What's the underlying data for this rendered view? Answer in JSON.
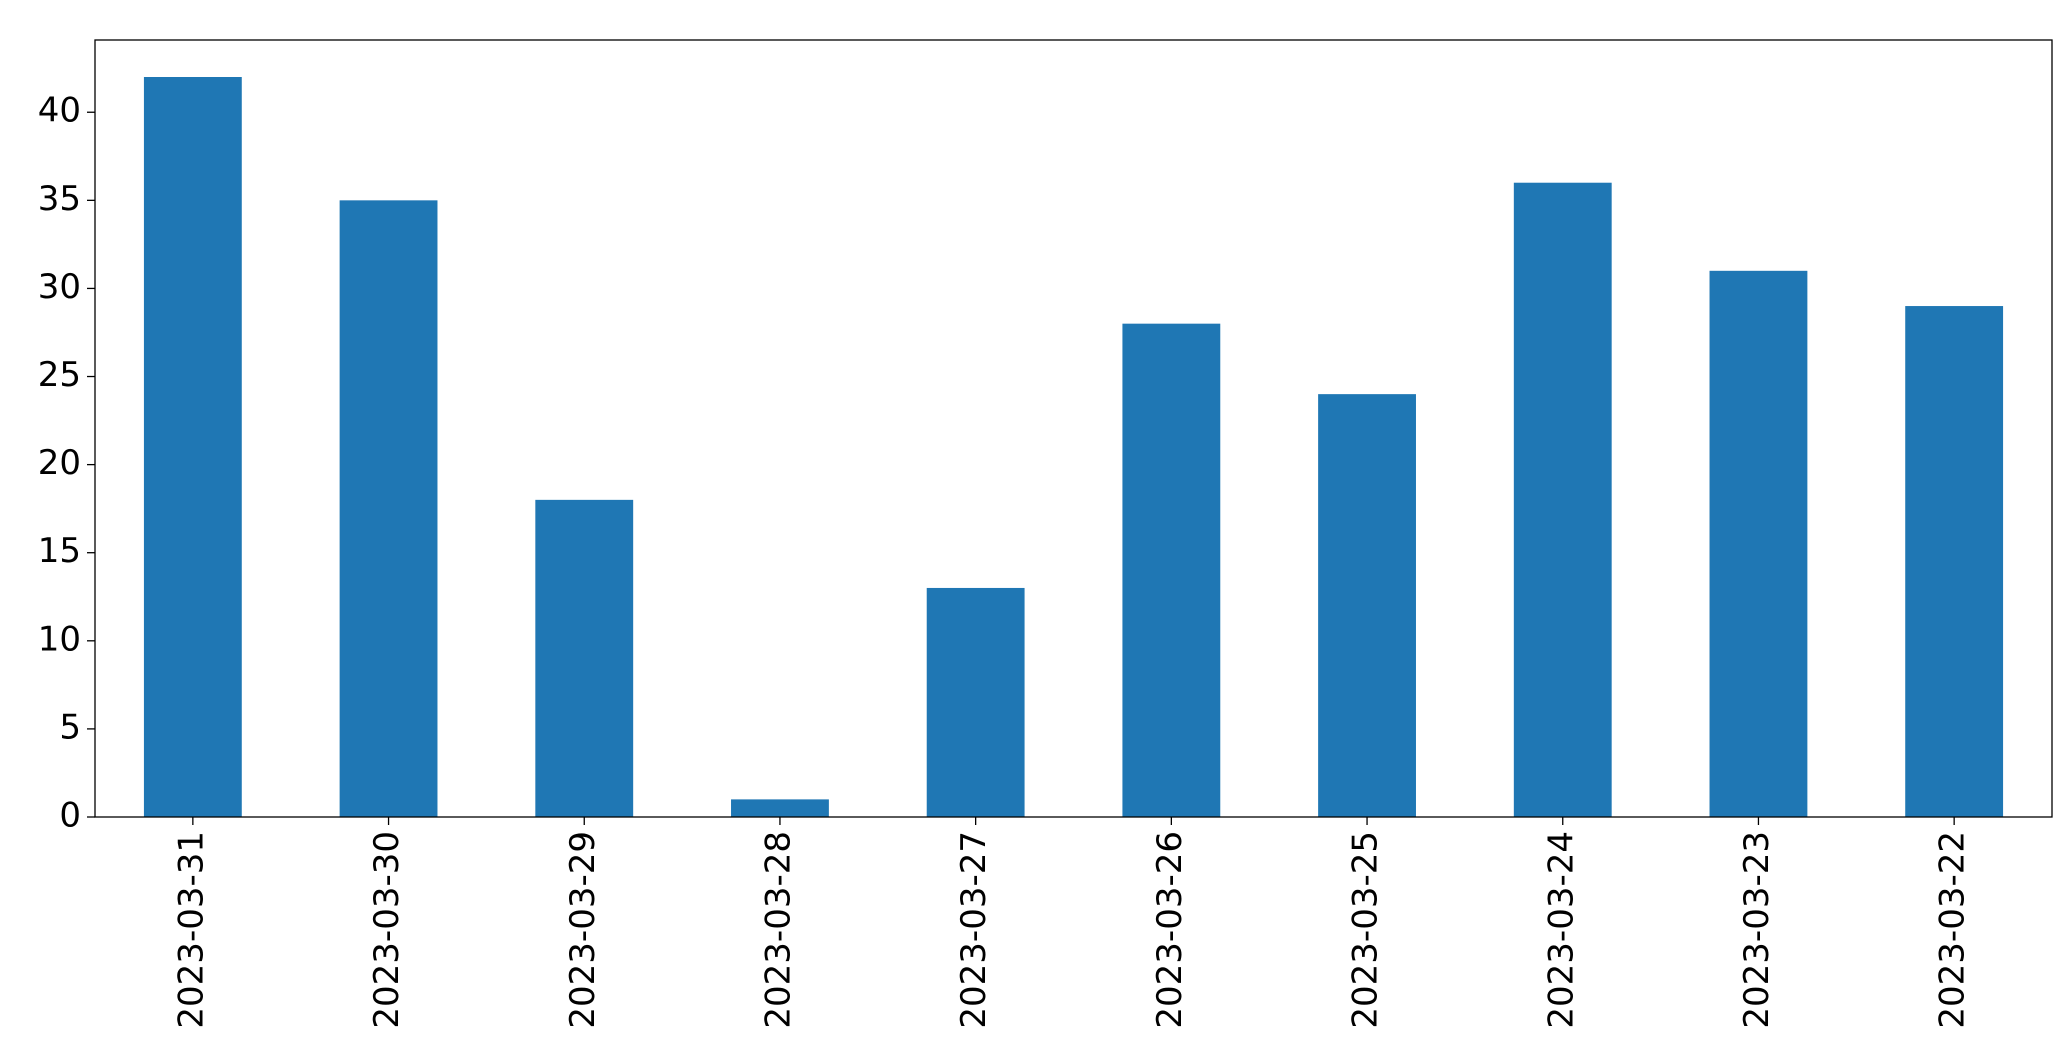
{
  "chart_data": {
    "type": "bar",
    "categories": [
      "2023-03-31",
      "2023-03-30",
      "2023-03-29",
      "2023-03-28",
      "2023-03-27",
      "2023-03-26",
      "2023-03-25",
      "2023-03-24",
      "2023-03-23",
      "2023-03-22"
    ],
    "values": [
      42,
      35,
      18,
      1,
      13,
      28,
      24,
      36,
      31,
      29
    ],
    "color": "#1f77b4",
    "ylim": [
      0,
      44.1
    ],
    "yticks": [
      0,
      5,
      10,
      15,
      20,
      25,
      30,
      35,
      40
    ],
    "grid": false
  }
}
